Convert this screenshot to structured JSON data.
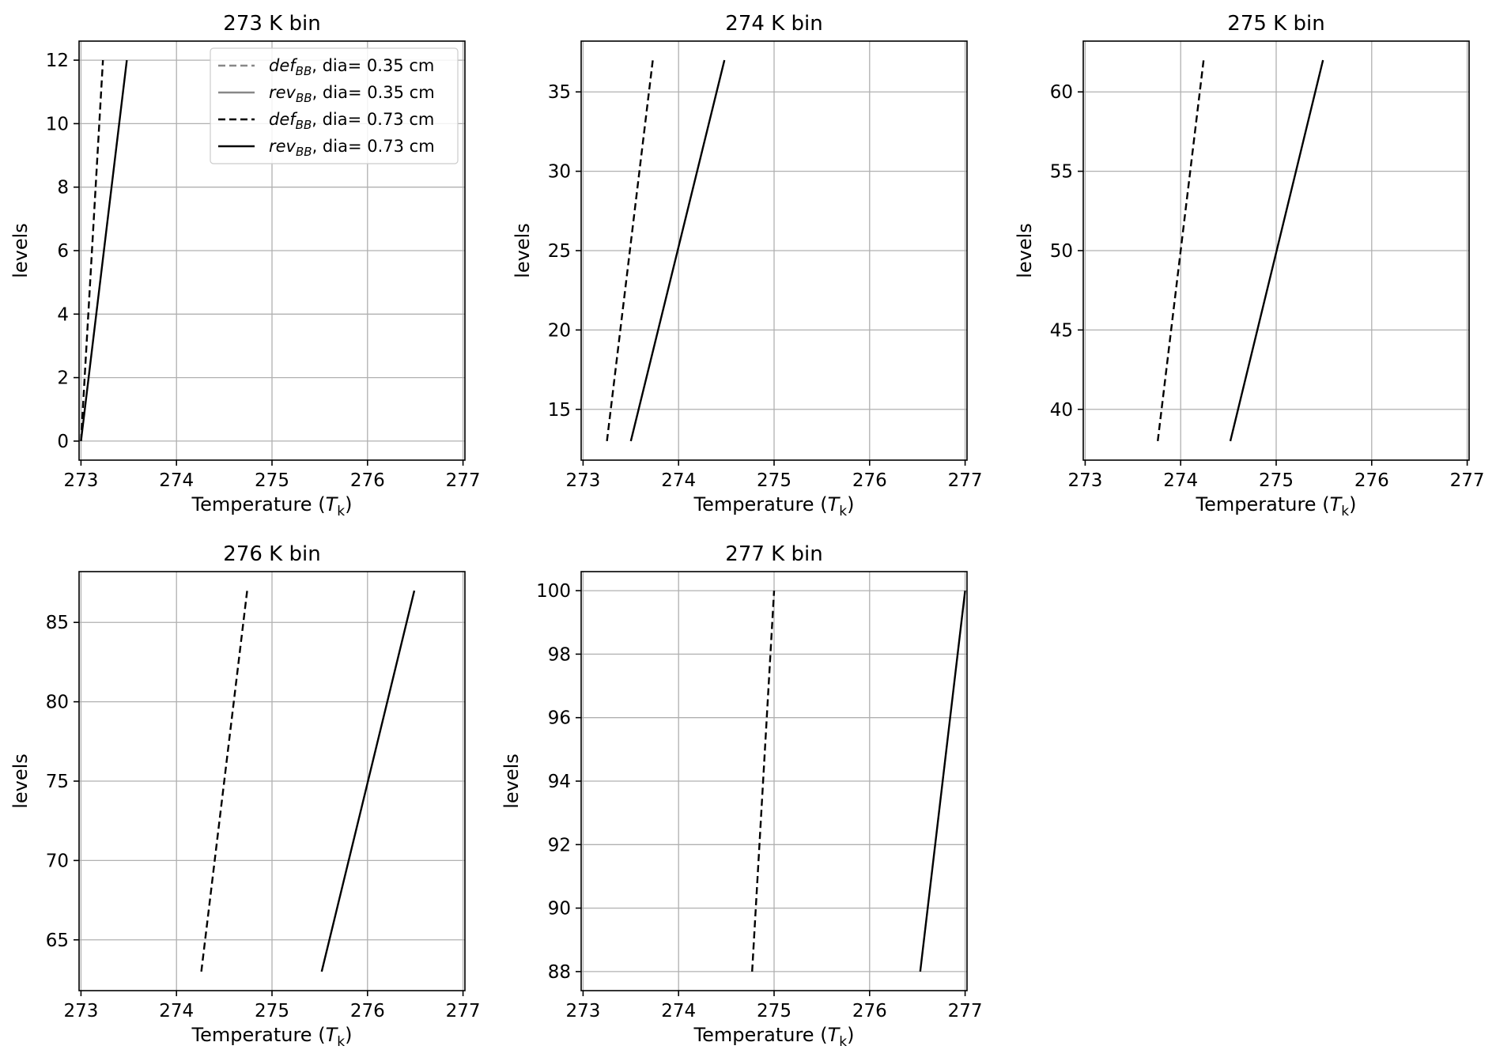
{
  "chart_data": [
    {
      "type": "line",
      "title": "273 K bin",
      "xlabel": "Temperature (T",
      "xlabel_sub": "k",
      "xlabel_close": ")",
      "ylabel": "levels",
      "xlim": [
        272.98,
        277.02
      ],
      "ylim": [
        12.6,
        -0.6
      ],
      "xticks": [
        273,
        274,
        275,
        276,
        277
      ],
      "yticks": [
        0,
        2,
        4,
        6,
        8,
        10,
        12
      ],
      "grid": true,
      "legend": {
        "placement": "upper-right",
        "entries": [
          {
            "base": "def",
            "sub": "BB",
            "rest": ", dia= 0.35 cm",
            "color": "#888888",
            "dash": "dashed"
          },
          {
            "base": "rev",
            "sub": "BB",
            "rest": ", dia= 0.35 cm",
            "color": "#888888",
            "dash": "solid"
          },
          {
            "base": "def",
            "sub": "BB",
            "rest": ", dia= 0.73 cm",
            "color": "#000000",
            "dash": "dashed"
          },
          {
            "base": "rev",
            "sub": "BB",
            "rest": ", dia= 0.73 cm",
            "color": "#000000",
            "dash": "solid"
          }
        ]
      },
      "series": [
        {
          "color": "#000000",
          "dash": "dashed",
          "points": [
            [
              273.0,
              0
            ],
            [
              273.23,
              12
            ]
          ]
        },
        {
          "color": "#000000",
          "dash": "solid",
          "points": [
            [
              273.0,
              0
            ],
            [
              273.48,
              12
            ]
          ]
        }
      ]
    },
    {
      "type": "line",
      "title": "274 K bin",
      "xlabel": "Temperature (T",
      "xlabel_sub": "k",
      "xlabel_close": ")",
      "ylabel": "levels",
      "xlim": [
        272.98,
        277.02
      ],
      "ylim": [
        38.2,
        11.8
      ],
      "xticks": [
        273,
        274,
        275,
        276,
        277
      ],
      "yticks": [
        15,
        20,
        25,
        30,
        35
      ],
      "grid": true,
      "series": [
        {
          "color": "#000000",
          "dash": "dashed",
          "points": [
            [
              273.25,
              13
            ],
            [
              273.73,
              37
            ]
          ]
        },
        {
          "color": "#000000",
          "dash": "solid",
          "points": [
            [
              273.5,
              13
            ],
            [
              274.48,
              37
            ]
          ]
        }
      ]
    },
    {
      "type": "line",
      "title": "275 K bin",
      "xlabel": "Temperature (T",
      "xlabel_sub": "k",
      "xlabel_close": ")",
      "ylabel": "levels",
      "xlim": [
        272.98,
        277.02
      ],
      "ylim": [
        63.2,
        36.8
      ],
      "xticks": [
        273,
        274,
        275,
        276,
        277
      ],
      "yticks": [
        40,
        45,
        50,
        55,
        60
      ],
      "grid": true,
      "series": [
        {
          "color": "#000000",
          "dash": "dashed",
          "points": [
            [
              273.76,
              38
            ],
            [
              274.24,
              62
            ]
          ]
        },
        {
          "color": "#000000",
          "dash": "solid",
          "points": [
            [
              274.52,
              38
            ],
            [
              275.49,
              62
            ]
          ]
        }
      ]
    },
    {
      "type": "line",
      "title": "276 K bin",
      "xlabel": "Temperature (T",
      "xlabel_sub": "k",
      "xlabel_close": ")",
      "ylabel": "levels",
      "xlim": [
        272.98,
        277.02
      ],
      "ylim": [
        88.2,
        61.8
      ],
      "xticks": [
        273,
        274,
        275,
        276,
        277
      ],
      "yticks": [
        65,
        70,
        75,
        80,
        85
      ],
      "grid": true,
      "series": [
        {
          "color": "#000000",
          "dash": "dashed",
          "points": [
            [
              274.26,
              63
            ],
            [
              274.74,
              87
            ]
          ]
        },
        {
          "color": "#000000",
          "dash": "solid",
          "points": [
            [
              275.52,
              63
            ],
            [
              276.49,
              87
            ]
          ]
        }
      ]
    },
    {
      "type": "line",
      "title": "277 K bin",
      "xlabel": "Temperature (T",
      "xlabel_sub": "k",
      "xlabel_close": ")",
      "ylabel": "levels",
      "xlim": [
        272.98,
        277.02
      ],
      "ylim": [
        100.6,
        87.4
      ],
      "xticks": [
        273,
        274,
        275,
        276,
        277
      ],
      "yticks": [
        88,
        90,
        92,
        94,
        96,
        98,
        100
      ],
      "grid": true,
      "series": [
        {
          "color": "#000000",
          "dash": "dashed",
          "points": [
            [
              274.77,
              88
            ],
            [
              275.0,
              100
            ]
          ]
        },
        {
          "color": "#000000",
          "dash": "solid",
          "points": [
            [
              276.53,
              88
            ],
            [
              277.0,
              100
            ]
          ]
        }
      ]
    }
  ]
}
